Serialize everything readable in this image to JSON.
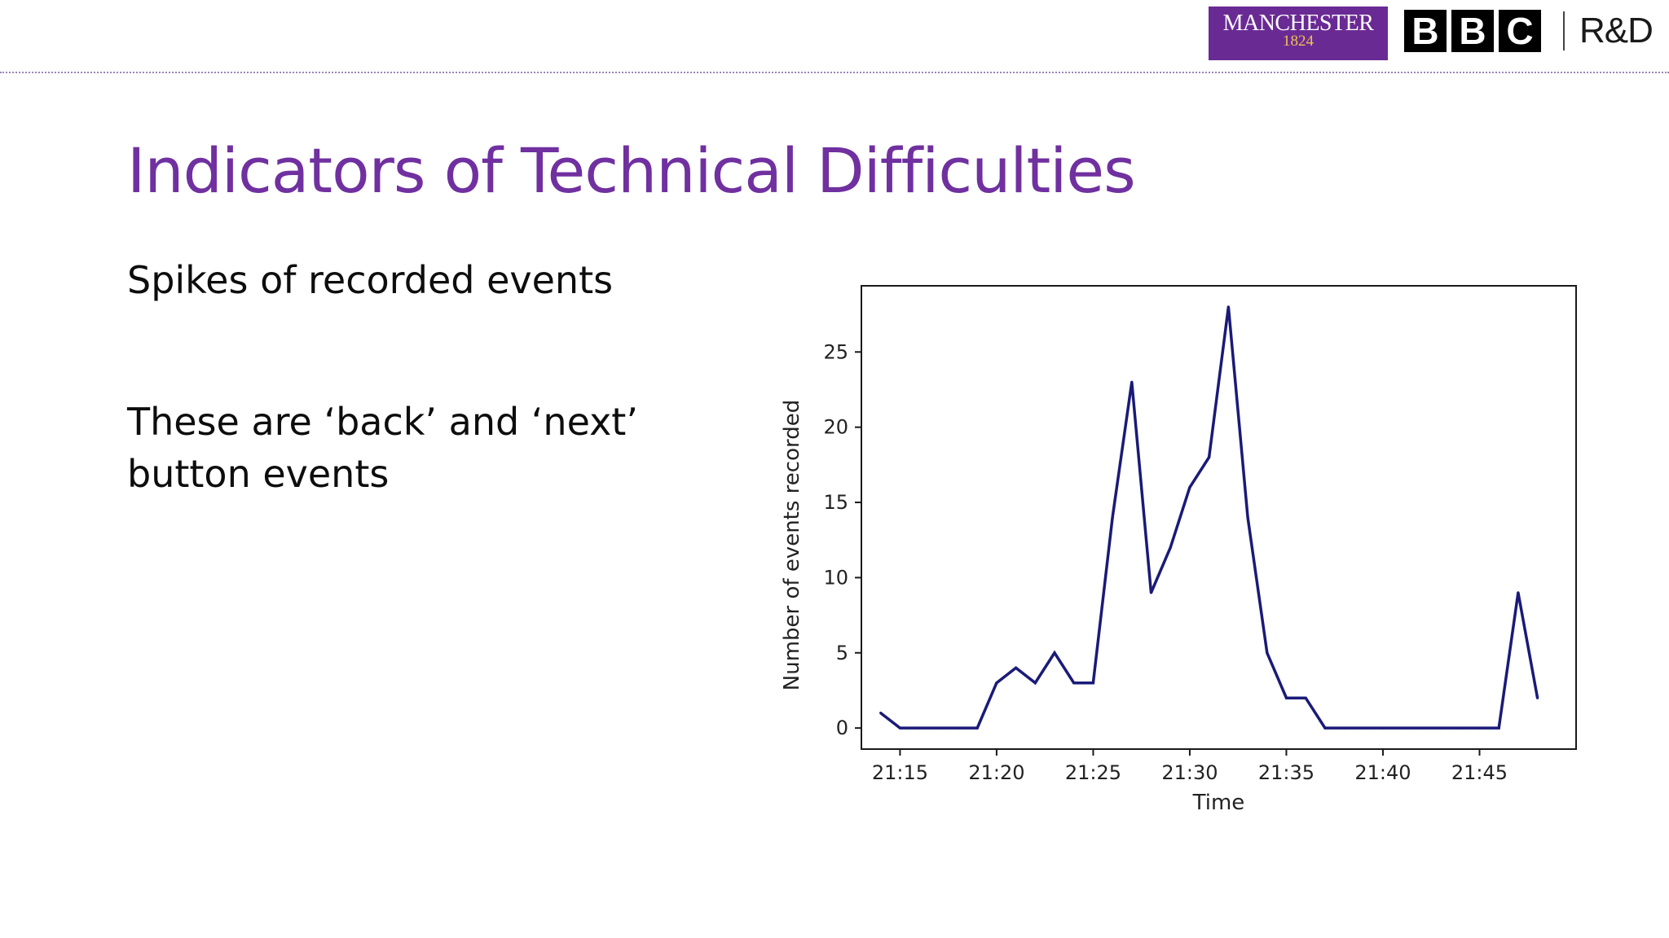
{
  "header": {
    "manchester_logo": {
      "name": "MANCHESTER",
      "year": "1824",
      "colors": {
        "bg": "#6a2a94",
        "year": "#f2c14e"
      }
    },
    "bbc_logo": {
      "letters": [
        "B",
        "B",
        "C"
      ]
    },
    "rd_logo": "R&D"
  },
  "slide": {
    "title": "Indicators of Technical Difficulties",
    "point_1": "Spikes of recorded events",
    "point_2": "These are ‘back’ and ‘next’ button events",
    "title_color": "#7030a0"
  },
  "chart_data": {
    "type": "line",
    "xlabel": "Time",
    "ylabel": "Number of events recorded",
    "x": [
      "21:14",
      "21:15",
      "21:16",
      "21:17",
      "21:18",
      "21:19",
      "21:20",
      "21:21",
      "21:22",
      "21:23",
      "21:24",
      "21:25",
      "21:26",
      "21:27",
      "21:28",
      "21:29",
      "21:30",
      "21:31",
      "21:32",
      "21:33",
      "21:34",
      "21:35",
      "21:36",
      "21:37",
      "21:38",
      "21:39",
      "21:40",
      "21:41",
      "21:42",
      "21:43",
      "21:44",
      "21:45",
      "21:46",
      "21:47",
      "21:48"
    ],
    "series": [
      {
        "values": [
          1,
          0,
          0,
          0,
          0,
          0,
          3,
          4,
          3,
          5,
          3,
          3,
          14,
          23,
          9,
          12,
          16,
          18,
          28,
          14,
          5,
          2,
          2,
          0,
          0,
          0,
          0,
          0,
          0,
          0,
          0,
          0,
          0,
          9,
          2
        ],
        "color": "#1a1a78"
      }
    ],
    "xticks": [
      "21:15",
      "21:20",
      "21:25",
      "21:30",
      "21:35",
      "21:40",
      "21:45"
    ],
    "yticks": [
      0,
      5,
      10,
      15,
      20,
      25
    ],
    "xlim": [
      "21:13",
      "21:50"
    ],
    "ylim": [
      -1.4,
      29.4
    ],
    "grid": false
  }
}
